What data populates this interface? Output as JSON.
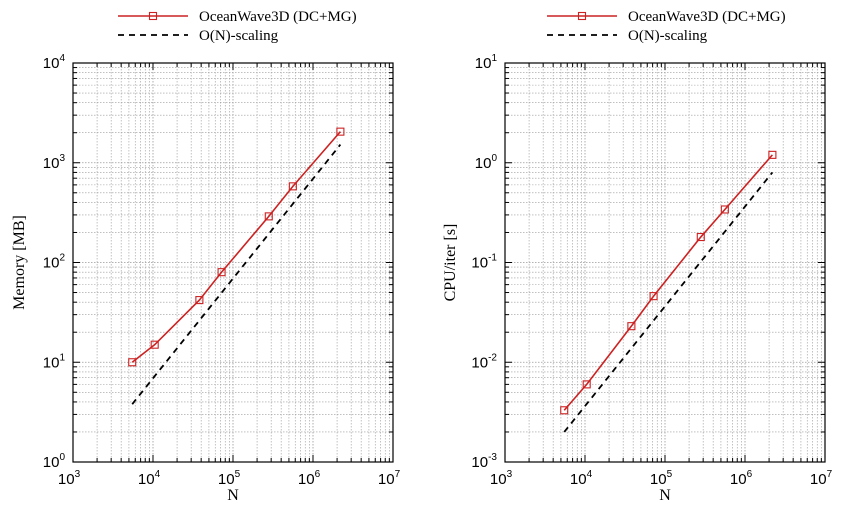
{
  "chart_data": [
    {
      "type": "line",
      "xlabel": "N",
      "ylabel": "Memory [MB]",
      "x_scale": "log",
      "y_scale": "log",
      "xlim": [
        1000,
        10000000
      ],
      "ylim": [
        1,
        10000
      ],
      "grid": true,
      "legend_position": "top",
      "x_ticks": [
        {
          "base": "10",
          "exp": "3"
        },
        {
          "base": "10",
          "exp": "4"
        },
        {
          "base": "10",
          "exp": "5"
        },
        {
          "base": "10",
          "exp": "6"
        },
        {
          "base": "10",
          "exp": "7"
        }
      ],
      "y_ticks": [
        {
          "base": "10",
          "exp": "0"
        },
        {
          "base": "10",
          "exp": "1"
        },
        {
          "base": "10",
          "exp": "2"
        },
        {
          "base": "10",
          "exp": "3"
        },
        {
          "base": "10",
          "exp": "4"
        }
      ],
      "series": [
        {
          "name": "OceanWave3D (DC+MG)",
          "color": "#cc2222",
          "style": "solid",
          "marker": "square",
          "x": [
            5500,
            10500,
            38000,
            72000,
            280000,
            560000,
            2200000
          ],
          "y": [
            10,
            15,
            42,
            80,
            290,
            580,
            2050
          ]
        },
        {
          "name": "O(N)-scaling",
          "color": "#000000",
          "style": "dashed",
          "marker": "none",
          "x": [
            5500,
            2200000
          ],
          "y": [
            3.8,
            1520
          ]
        }
      ]
    },
    {
      "type": "line",
      "xlabel": "N",
      "ylabel": "CPU/iter [s]",
      "x_scale": "log",
      "y_scale": "log",
      "xlim": [
        1000,
        10000000
      ],
      "ylim": [
        0.001,
        10
      ],
      "grid": true,
      "legend_position": "top",
      "x_ticks": [
        {
          "base": "10",
          "exp": "3"
        },
        {
          "base": "10",
          "exp": "4"
        },
        {
          "base": "10",
          "exp": "5"
        },
        {
          "base": "10",
          "exp": "6"
        },
        {
          "base": "10",
          "exp": "7"
        }
      ],
      "y_ticks": [
        {
          "base": "10",
          "exp": "-3"
        },
        {
          "base": "10",
          "exp": "-2"
        },
        {
          "base": "10",
          "exp": "-1"
        },
        {
          "base": "10",
          "exp": "0"
        },
        {
          "base": "10",
          "exp": "1"
        }
      ],
      "series": [
        {
          "name": "OceanWave3D (DC+MG)",
          "color": "#cc2222",
          "style": "solid",
          "marker": "square",
          "x": [
            5500,
            10500,
            38000,
            72000,
            280000,
            560000,
            2200000
          ],
          "y": [
            0.0033,
            0.006,
            0.023,
            0.046,
            0.18,
            0.34,
            1.2
          ]
        },
        {
          "name": "O(N)-scaling",
          "color": "#000000",
          "style": "dashed",
          "marker": "none",
          "x": [
            5500,
            2200000
          ],
          "y": [
            0.002,
            0.8
          ]
        }
      ]
    }
  ]
}
